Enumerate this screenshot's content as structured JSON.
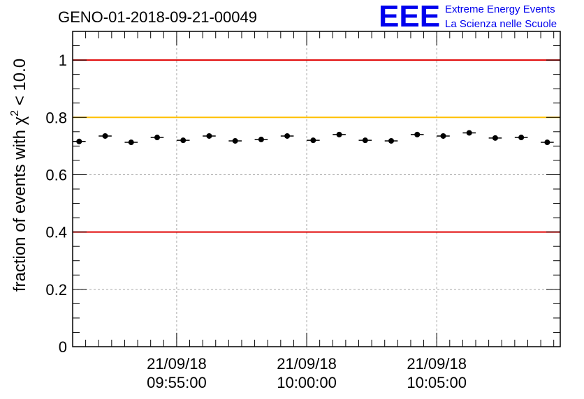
{
  "chart_data": {
    "type": "scatter",
    "title": "GENO-01-2018-09-21-00049",
    "ylabel_prefix": "fraction of events with ",
    "ylabel_symbol": "χ",
    "ylabel_sup": "2",
    "ylabel_suffix": " < 10.0",
    "xlabel": "",
    "ylim": [
      0,
      1.1
    ],
    "yticks": [
      0,
      0.2,
      0.4,
      0.6,
      0.8,
      1
    ],
    "ytick_labels": [
      "0",
      "0.2",
      "0.4",
      "0.6",
      "0.8",
      "1"
    ],
    "x_range_min": [
      0,
      37.5
    ],
    "bin_width_min": 1,
    "xticks": [
      {
        "pos_min": 8,
        "date": "21/09/18",
        "time": "09:55:00"
      },
      {
        "pos_min": 18,
        "date": "21/09/18",
        "time": "10:00:00"
      },
      {
        "pos_min": 28,
        "date": "21/09/18",
        "time": "10:05:00"
      }
    ],
    "series": [
      {
        "name": "fraction",
        "x": [
          0.5,
          2.5,
          4.5,
          6.5,
          8.5,
          10.5,
          12.5,
          14.5,
          16.5,
          18.5,
          20.5,
          22.5,
          24.5,
          26.5,
          28.5,
          30.5,
          32.5,
          34.5,
          36.5
        ],
        "values": [
          0.716,
          0.735,
          0.713,
          0.73,
          0.72,
          0.735,
          0.718,
          0.723,
          0.735,
          0.72,
          0.74,
          0.72,
          0.718,
          0.74,
          0.735,
          0.746,
          0.728,
          0.73,
          0.713
        ]
      }
    ],
    "reference_lines": [
      {
        "y": 1.0,
        "color": "#e00000"
      },
      {
        "y": 0.8,
        "color": "#ffc000"
      },
      {
        "y": 0.4,
        "color": "#e00000"
      }
    ]
  },
  "logo": {
    "text": "EEE",
    "line1": "Extreme Energy Events",
    "line2": "La Scienza nelle Scuole",
    "color": "#0000ee"
  }
}
